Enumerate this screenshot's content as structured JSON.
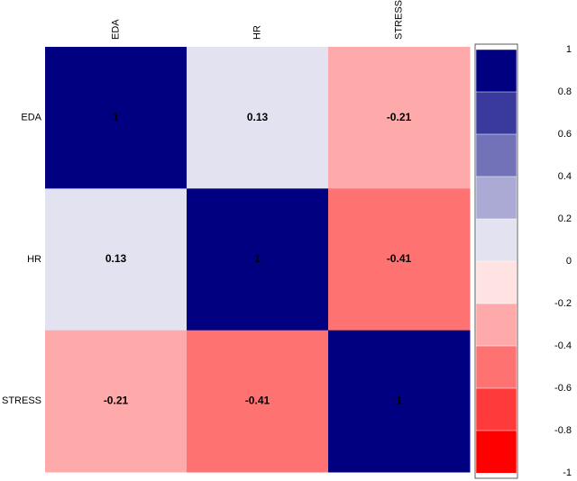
{
  "chart_data": {
    "type": "heatmap",
    "x_categories": [
      "EDA",
      "HR",
      "STRESS"
    ],
    "y_categories": [
      "EDA",
      "HR",
      "STRESS"
    ],
    "values": [
      [
        1,
        0.13,
        -0.21
      ],
      [
        0.13,
        1,
        -0.41
      ],
      [
        -0.21,
        -0.41,
        1
      ]
    ],
    "colorbar": {
      "lim": [
        -1,
        1
      ],
      "ticks": [
        1,
        0.8,
        0.6,
        0.4,
        0.2,
        0,
        -0.2,
        -0.4,
        -0.6,
        -0.8,
        -1
      ],
      "colors": [
        "#000080",
        "#3a3a9e",
        "#7272b8",
        "#aaaad5",
        "#e2e2f0",
        "#ffe2e2",
        "#ffaaaa",
        "#ff7272",
        "#ff3a3a",
        "#ff0000"
      ]
    }
  }
}
